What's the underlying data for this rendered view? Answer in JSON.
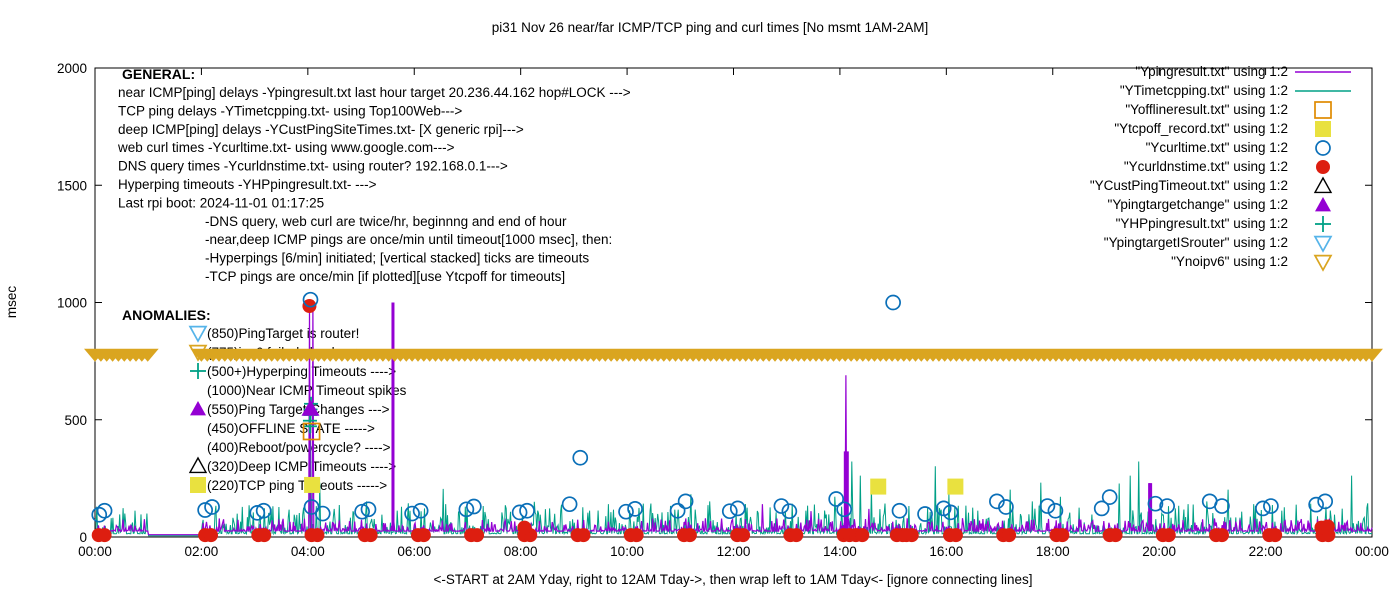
{
  "chart_data": {
    "type": "line",
    "title": "pi31 Nov 26  near/far ICMP/TCP ping and curl times [No msmt 1AM-2AM]",
    "xlabel": "<-START at 2AM Yday, right to 12AM Tday->, then wrap left to 1AM Tday<- [ignore connecting lines]",
    "ylabel": "msec",
    "ylim": [
      0,
      2000
    ],
    "yticks": [
      0,
      500,
      1000,
      1500,
      2000
    ],
    "xlim_hours": [
      0,
      24
    ],
    "xtick_hours": [
      0,
      2,
      4,
      6,
      8,
      10,
      12,
      14,
      16,
      18,
      20,
      22,
      24
    ],
    "xtick_labels": [
      "00:00",
      "02:00",
      "04:00",
      "06:00",
      "08:00",
      "10:00",
      "12:00",
      "14:00",
      "16:00",
      "18:00",
      "20:00",
      "22:00",
      "00:00"
    ],
    "grid": "off",
    "legend_position": "top-right",
    "legend": [
      {
        "label": "\"Ypingresult.txt\" using 1:2",
        "marker": "line",
        "color": "#9400D3"
      },
      {
        "label": "\"YTimetcpping.txt\" using 1:2",
        "marker": "line",
        "color": "#00A086"
      },
      {
        "label": "\"Yofflineresult.txt\" using 1:2",
        "marker": "square-open",
        "color": "#E08A00"
      },
      {
        "label": "\"Ytcpoff_record.txt\" using 1:2",
        "marker": "square",
        "color": "#E9E13F"
      },
      {
        "label": "\"Ycurltime.txt\" using 1:2",
        "marker": "circle-open",
        "color": "#0A6FB8"
      },
      {
        "label": "\"Ycurldnstime.txt\" using 1:2",
        "marker": "circle",
        "color": "#DD1E10"
      },
      {
        "label": "\"YCustPingTimeout.txt\" using 1:2",
        "marker": "tri-open",
        "color": "#000000"
      },
      {
        "label": "\"Ypingtargetchange\" using 1:2",
        "marker": "tri",
        "color": "#9400D3"
      },
      {
        "label": "\"YHPpingresult.txt\" using 1:2",
        "marker": "plus",
        "color": "#00A086"
      },
      {
        "label": "\"YpingtargetISrouter\" using 1:2",
        "marker": "tridown-open",
        "color": "#56B4E9"
      },
      {
        "label": "\"Ynoipv6\" using 1:2",
        "marker": "tridown-open",
        "color": "#DAA520"
      }
    ],
    "annotations": {
      "general": {
        "heading": "GENERAL:",
        "lines": [
          "near ICMP[ping] delays -Ypingresult.txt last hour target 20.236.44.162 hop#LOCK --->",
          "TCP ping delays -YTimetcpping.txt- using Top100Web--->",
          "deep ICMP[ping] delays -YCustPingSiteTimes.txt- [X generic rpi]--->",
          "web curl times -Ycurltime.txt- using www.google.com--->",
          "DNS query times -Ycurldnstime.txt- using router? 192.168.0.1--->",
          "Hyperping timeouts -YHPpingresult.txt- --->",
          "Last rpi boot: 2024-11-01 01:17:25"
        ],
        "notes": [
          "-DNS query, web curl are twice/hr, beginnng and end of hour",
          "-near,deep ICMP pings are once/min until timeout[1000 msec], then:",
          " -Hyperpings [6/min] initiated; [vertical stacked] ticks are timeouts",
          "-TCP pings are once/min [if plotted][use Ytcpoff for timeouts]"
        ]
      },
      "anomalies": {
        "heading": "ANOMALIES:",
        "items": [
          {
            "marker": "tridown-open",
            "color": "#56B4E9",
            "text": "(850)PingTarget is router!"
          },
          {
            "marker": "tridown-open",
            "color": "#DAA520",
            "text": "(775)ipv6 failed check --->"
          },
          {
            "marker": "plus",
            "color": "#00A086",
            "text": "(500+)Hyperping Timeouts ---->"
          },
          {
            "marker": "none",
            "color": "#000000",
            "text": "(1000)Near ICMP Timeout spikes"
          },
          {
            "marker": "tri",
            "color": "#9400D3",
            "text": "(550)Ping Target Changes --->"
          },
          {
            "marker": "none",
            "color": "#000000",
            "text": "(450)OFFLINE STATE ----->"
          },
          {
            "marker": "none",
            "color": "#000000",
            "text": "(400)Reboot/powercycle? ---->"
          },
          {
            "marker": "tri-open",
            "color": "#000000",
            "text": "(320)Deep ICMP Timeouts ---->"
          },
          {
            "marker": "square",
            "color": "#E9E13F",
            "text": "(220)TCP ping Timeouts ----->"
          }
        ]
      }
    },
    "series": {
      "ping_line": {
        "name": "Ypingresult.txt",
        "color": "#9400D3",
        "baseline_msec": 25,
        "noise_amp": 55,
        "seed": 11,
        "spikes": [
          [
            2.04,
            60
          ],
          [
            4.03,
            980
          ],
          [
            4.09,
            980
          ],
          [
            5.6,
            1000
          ],
          [
            12.55,
            140
          ],
          [
            13.45,
            110
          ],
          [
            14.12,
            690
          ],
          [
            14.55,
            120
          ],
          [
            16.3,
            80
          ],
          [
            19.83,
            230
          ],
          [
            22.6,
            70
          ]
        ],
        "thick_spikes": [
          [
            5.6,
            1000,
            3
          ],
          [
            14.12,
            365,
            5
          ],
          [
            19.83,
            230,
            4
          ]
        ]
      },
      "tcp_line": {
        "name": "YTimetcpping.txt",
        "color": "#00A086",
        "baseline_msec": 14,
        "noise_amp": 130,
        "seed": 7,
        "spikes": [
          [
            0.3,
            80
          ],
          [
            0.7,
            62
          ],
          [
            2.25,
            100
          ],
          [
            2.6,
            82
          ],
          [
            3.1,
            92
          ],
          [
            3.45,
            128
          ],
          [
            4.05,
            510
          ],
          [
            4.23,
            232
          ],
          [
            4.5,
            120
          ],
          [
            5.1,
            152
          ],
          [
            5.4,
            95
          ],
          [
            6.2,
            122
          ],
          [
            6.55,
            205
          ],
          [
            6.85,
            95
          ],
          [
            7.3,
            132
          ],
          [
            7.65,
            105
          ],
          [
            8.25,
            150
          ],
          [
            8.55,
            122
          ],
          [
            9.3,
            112
          ],
          [
            9.65,
            140
          ],
          [
            10.3,
            142
          ],
          [
            10.65,
            105
          ],
          [
            11.2,
            182
          ],
          [
            11.55,
            152
          ],
          [
            12.25,
            125
          ],
          [
            12.8,
            105
          ],
          [
            13.1,
            142
          ],
          [
            13.9,
            172
          ],
          [
            14.22,
            322
          ],
          [
            14.38,
            262
          ],
          [
            14.6,
            212
          ],
          [
            15.3,
            132
          ],
          [
            15.8,
            302
          ],
          [
            16.05,
            182
          ],
          [
            16.5,
            125
          ],
          [
            17.2,
            202
          ],
          [
            17.62,
            152
          ],
          [
            17.78,
            232
          ],
          [
            18.15,
            172
          ],
          [
            18.5,
            125
          ],
          [
            19.25,
            228
          ],
          [
            19.45,
            262
          ],
          [
            19.62,
            322
          ],
          [
            20.3,
            122
          ],
          [
            20.9,
            152
          ],
          [
            21.3,
            202
          ],
          [
            21.8,
            132
          ],
          [
            22.3,
            112
          ],
          [
            22.85,
            142
          ],
          [
            23.3,
            95
          ],
          [
            23.62,
            262
          ],
          [
            23.9,
            125
          ]
        ]
      },
      "offline_squares": {
        "name": "Yofflineresult.txt",
        "color": "#E08A00",
        "points": [
          [
            4.07,
            450
          ]
        ]
      },
      "tcpoff_squares": {
        "name": "Ytcpoff_record.txt",
        "color": "#E9E13F",
        "points": [
          [
            4.08,
            222
          ],
          [
            14.72,
            215
          ],
          [
            16.17,
            215
          ]
        ]
      },
      "curl_circles": {
        "name": "Ycurltime.txt",
        "color": "#0A6FB8",
        "points": [
          [
            0.08,
            95
          ],
          [
            0.18,
            112
          ],
          [
            2.07,
            115
          ],
          [
            2.2,
            128
          ],
          [
            3.05,
            103
          ],
          [
            3.17,
            112
          ],
          [
            4.05,
            1012
          ],
          [
            4.07,
            128
          ],
          [
            4.28,
            100
          ],
          [
            5.02,
            108
          ],
          [
            5.14,
            118
          ],
          [
            5.96,
            100
          ],
          [
            6.12,
            112
          ],
          [
            6.98,
            118
          ],
          [
            7.12,
            130
          ],
          [
            7.98,
            105
          ],
          [
            8.12,
            112
          ],
          [
            8.92,
            140
          ],
          [
            9.12,
            338
          ],
          [
            9.98,
            108
          ],
          [
            10.15,
            120
          ],
          [
            10.95,
            112
          ],
          [
            11.1,
            152
          ],
          [
            11.93,
            110
          ],
          [
            12.08,
            122
          ],
          [
            12.9,
            132
          ],
          [
            13.05,
            110
          ],
          [
            13.93,
            162
          ],
          [
            14.08,
            118
          ],
          [
            15.0,
            1000
          ],
          [
            15.12,
            112
          ],
          [
            15.6,
            98
          ],
          [
            15.95,
            122
          ],
          [
            16.08,
            105
          ],
          [
            16.95,
            152
          ],
          [
            17.12,
            128
          ],
          [
            17.9,
            132
          ],
          [
            18.05,
            112
          ],
          [
            18.92,
            122
          ],
          [
            19.07,
            170
          ],
          [
            19.93,
            142
          ],
          [
            20.15,
            132
          ],
          [
            20.95,
            152
          ],
          [
            21.18,
            132
          ],
          [
            21.95,
            122
          ],
          [
            22.1,
            132
          ],
          [
            22.95,
            138
          ],
          [
            23.12,
            152
          ]
        ]
      },
      "dns_dots": {
        "name": "Ycurldnstime.txt",
        "color": "#DD1E10",
        "pair_hours": [
          0,
          2,
          3,
          4,
          5,
          6,
          7,
          8,
          9,
          10,
          11,
          12,
          13,
          14,
          15,
          16,
          17,
          18,
          19,
          20,
          21,
          22,
          23
        ],
        "pair_msec": 8,
        "extra_points": [
          [
            4.03,
            985
          ],
          [
            8.07,
            40
          ],
          [
            14.3,
            8
          ],
          [
            14.42,
            8
          ],
          [
            15.25,
            8
          ],
          [
            15.35,
            8
          ],
          [
            23.05,
            40
          ],
          [
            23.17,
            45
          ]
        ]
      },
      "targetchange_triangles": {
        "name": "Ypingtargetchange",
        "color": "#9400D3",
        "points": [
          [
            4.05,
            548
          ]
        ]
      },
      "hyperping_plus": {
        "name": "YHPpingresult.txt",
        "color": "#00A086",
        "points": [
          [
            4.04,
            472
          ],
          [
            4.04,
            496
          ],
          [
            4.05,
            520
          ],
          [
            4.05,
            544
          ],
          [
            4.06,
            568
          ]
        ]
      },
      "noipv6_band": {
        "name": "Ynoipv6",
        "color": "#DAA520",
        "y_msec": 775,
        "ranges_hours": [
          [
            0,
            1
          ],
          [
            2,
            24
          ]
        ]
      }
    }
  }
}
